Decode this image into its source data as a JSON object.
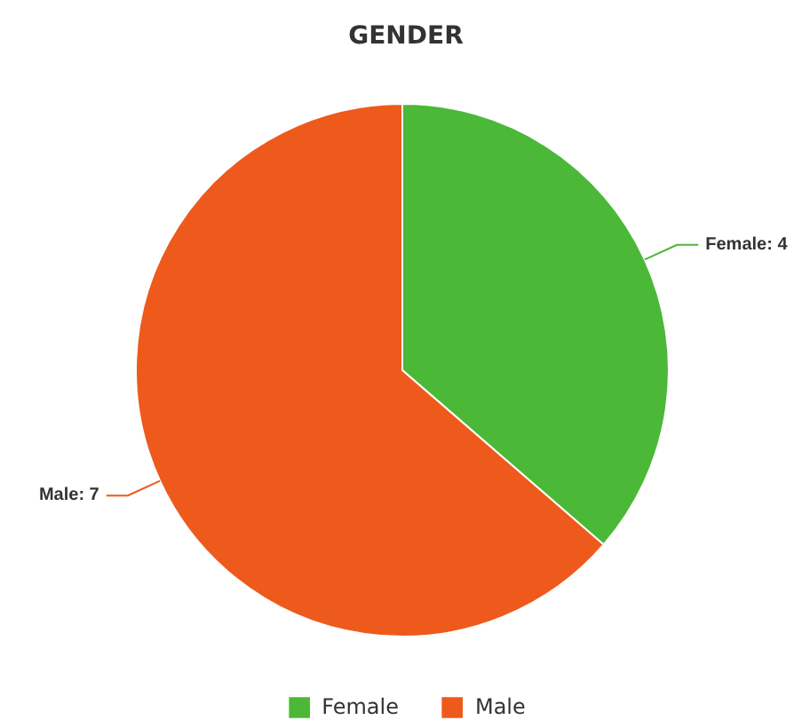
{
  "chart_data": {
    "type": "pie",
    "title": "GENDER",
    "categories": [
      "Female",
      "Male"
    ],
    "values": [
      4,
      7
    ],
    "colors": [
      "#4cb837",
      "#ee5a1b"
    ],
    "value_labels": [
      "Female: 4",
      "Male: 7"
    ],
    "legend": "bottom"
  }
}
